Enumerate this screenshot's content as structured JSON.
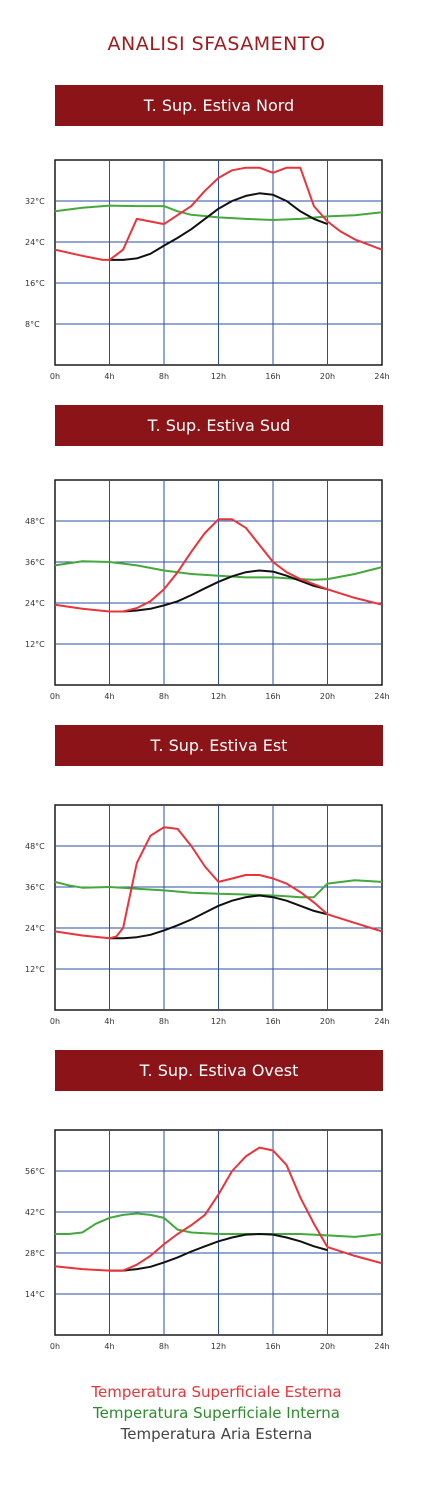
{
  "title": "ANALISI SFASAMENTO",
  "colors": {
    "banner": "#8a1418",
    "title": "#9e1b1e",
    "external_surface": "#e8343a",
    "internal_surface": "#44a83c",
    "external_air": "#111111",
    "grid": "#2a4fa0"
  },
  "legend": [
    {
      "label": "Temperatura Superficiale Esterna",
      "color": "#e8343a"
    },
    {
      "label": "Temperatura Superficiale Interna",
      "color": "#2e8b2e"
    },
    {
      "label": "Temperatura Aria Esterna",
      "color": "#444444"
    }
  ],
  "chart_data": [
    {
      "type": "line",
      "title": "T. Sup. Estiva Nord",
      "xlim": [
        0,
        24
      ],
      "ylim": [
        0,
        40
      ],
      "x_ticks": [
        0,
        4,
        8,
        12,
        16,
        20,
        24
      ],
      "x_tick_labels": [
        "0h",
        "4h",
        "8h",
        "12h",
        "16h",
        "20h",
        "24h"
      ],
      "y_ticks": [
        8,
        16,
        24,
        32
      ],
      "y_tick_labels": [
        "8°C",
        "16°C",
        "24°C",
        "32°C"
      ],
      "series": [
        {
          "key": "external_surface",
          "x": [
            0,
            2,
            3.5,
            4,
            5,
            6,
            8,
            10,
            11,
            12,
            13,
            14,
            15,
            16,
            17,
            18,
            19,
            20,
            21,
            22,
            24
          ],
          "y": [
            22.5,
            21.3,
            20.5,
            20.5,
            22.5,
            28.5,
            27.5,
            31,
            34,
            36.5,
            38,
            38.5,
            38.5,
            37.5,
            38.5,
            38.5,
            31,
            28,
            26,
            24.5,
            22.5
          ]
        },
        {
          "key": "internal_surface",
          "x": [
            0,
            2,
            4,
            6,
            8,
            9,
            10,
            12,
            14,
            16,
            18,
            20,
            22,
            24
          ],
          "y": [
            30,
            30.7,
            31.1,
            31,
            31,
            30,
            29.3,
            28.8,
            28.5,
            28.3,
            28.5,
            29,
            29.2,
            29.8
          ]
        },
        {
          "key": "external_air",
          "x": [
            4,
            5,
            6,
            7,
            8,
            9,
            10,
            11,
            12,
            13,
            14,
            15,
            16,
            17,
            18,
            19,
            20
          ],
          "y": [
            20.5,
            20.5,
            20.8,
            21.7,
            23.3,
            24.8,
            26.5,
            28.5,
            30.5,
            32,
            33,
            33.5,
            33.2,
            32,
            30,
            28.5,
            27.5
          ]
        }
      ]
    },
    {
      "type": "line",
      "title": "T. Sup. Estiva Sud",
      "xlim": [
        0,
        24
      ],
      "ylim": [
        0,
        60
      ],
      "x_ticks": [
        0,
        4,
        8,
        12,
        16,
        20,
        24
      ],
      "x_tick_labels": [
        "0h",
        "4h",
        "8h",
        "12h",
        "16h",
        "20h",
        "24h"
      ],
      "y_ticks": [
        12,
        24,
        36,
        48
      ],
      "y_tick_labels": [
        "12°C",
        "24°C",
        "36°C",
        "48°C"
      ],
      "series": [
        {
          "key": "external_surface",
          "x": [
            0,
            2,
            4,
            5,
            6,
            7,
            8,
            9,
            10,
            11,
            12,
            13,
            14,
            15,
            16,
            17,
            18,
            20,
            22,
            24
          ],
          "y": [
            23.5,
            22.3,
            21.5,
            21.5,
            22.5,
            24.5,
            28,
            33,
            39,
            44.5,
            48.5,
            48.5,
            46,
            41,
            36,
            33,
            31,
            28,
            25.5,
            23.5
          ]
        },
        {
          "key": "internal_surface",
          "x": [
            0,
            2,
            4,
            6,
            8,
            10,
            12,
            14,
            16,
            18,
            19,
            20,
            22,
            24
          ],
          "y": [
            35,
            36.2,
            36,
            35,
            33.5,
            32.5,
            32,
            31.5,
            31.5,
            31,
            30.8,
            31,
            32.5,
            34.5
          ]
        },
        {
          "key": "external_air",
          "x": [
            4,
            5,
            6,
            7,
            8,
            9,
            10,
            11,
            12,
            13,
            14,
            15,
            16,
            17,
            18,
            19,
            20
          ],
          "y": [
            21.5,
            21.5,
            21.8,
            22.3,
            23.3,
            24.5,
            26.3,
            28.3,
            30.2,
            31.8,
            33,
            33.5,
            33.2,
            32,
            30.5,
            29,
            28
          ]
        }
      ]
    },
    {
      "type": "line",
      "title": "T. Sup. Estiva Est",
      "xlim": [
        0,
        24
      ],
      "ylim": [
        0,
        60
      ],
      "x_ticks": [
        0,
        4,
        8,
        12,
        16,
        20,
        24
      ],
      "x_tick_labels": [
        "0h",
        "4h",
        "8h",
        "12h",
        "16h",
        "20h",
        "24h"
      ],
      "y_ticks": [
        12,
        24,
        36,
        48
      ],
      "y_tick_labels": [
        "12°C",
        "24°C",
        "36°C",
        "48°C"
      ],
      "series": [
        {
          "key": "external_surface",
          "x": [
            0,
            2,
            4,
            4.5,
            5,
            6,
            7,
            8,
            9,
            10,
            11,
            12,
            13,
            14,
            15,
            16,
            17,
            18,
            19,
            20,
            22,
            24
          ],
          "y": [
            23,
            21.8,
            21,
            21.5,
            24,
            43,
            51,
            53.5,
            53,
            48,
            42,
            37.5,
            38.5,
            39.5,
            39.5,
            38.5,
            37,
            34.5,
            31.5,
            28,
            25.5,
            23
          ]
        },
        {
          "key": "internal_surface",
          "x": [
            0,
            1,
            2,
            4,
            6,
            8,
            10,
            12,
            14,
            16,
            17,
            18,
            19,
            20,
            22,
            24
          ],
          "y": [
            37.5,
            36.5,
            35.8,
            36,
            35.5,
            35,
            34.3,
            34,
            33.8,
            33.5,
            33.3,
            33,
            33,
            37,
            38,
            37.5
          ]
        },
        {
          "key": "external_air",
          "x": [
            4,
            5,
            6,
            7,
            8,
            9,
            10,
            11,
            12,
            13,
            14,
            15,
            16,
            17,
            18,
            19,
            20
          ],
          "y": [
            21,
            21,
            21.3,
            22,
            23.3,
            24.8,
            26.5,
            28.5,
            30.5,
            32,
            33,
            33.5,
            33,
            32,
            30.5,
            29,
            28
          ]
        }
      ]
    },
    {
      "type": "line",
      "title": "T. Sup. Estiva Ovest",
      "xlim": [
        0,
        24
      ],
      "ylim": [
        0,
        70
      ],
      "x_ticks": [
        0,
        4,
        8,
        12,
        16,
        20,
        24
      ],
      "x_tick_labels": [
        "0h",
        "4h",
        "8h",
        "12h",
        "16h",
        "20h",
        "24h"
      ],
      "y_ticks": [
        14,
        28,
        42,
        56
      ],
      "y_tick_labels": [
        "14°C",
        "28°C",
        "42°C",
        "56°C"
      ],
      "series": [
        {
          "key": "external_surface",
          "x": [
            0,
            2,
            4,
            5,
            6,
            7,
            8,
            9,
            10,
            11,
            12,
            13,
            14,
            15,
            16,
            17,
            18,
            19,
            20,
            22,
            24
          ],
          "y": [
            23.5,
            22.5,
            22,
            22,
            24,
            27,
            31,
            34.5,
            37.5,
            41,
            48,
            56,
            61,
            64,
            63,
            58,
            47,
            38,
            30,
            27,
            24.5
          ]
        },
        {
          "key": "internal_surface",
          "x": [
            0,
            1,
            2,
            3,
            4,
            5,
            6,
            7,
            8,
            9,
            10,
            12,
            14,
            16,
            18,
            20,
            22,
            24
          ],
          "y": [
            34.5,
            34.5,
            35,
            38,
            40,
            41,
            41.5,
            41,
            40,
            36,
            35,
            34.5,
            34.5,
            34.5,
            34.5,
            34,
            33.5,
            34.5
          ]
        },
        {
          "key": "external_air",
          "x": [
            4,
            5,
            6,
            7,
            8,
            9,
            10,
            11,
            12,
            13,
            14,
            15,
            16,
            17,
            18,
            19,
            20
          ],
          "y": [
            22,
            22,
            22.5,
            23.3,
            24.8,
            26.5,
            28.5,
            30.3,
            32,
            33.3,
            34.3,
            34.5,
            34.3,
            33.3,
            32,
            30.3,
            29
          ]
        }
      ]
    }
  ]
}
